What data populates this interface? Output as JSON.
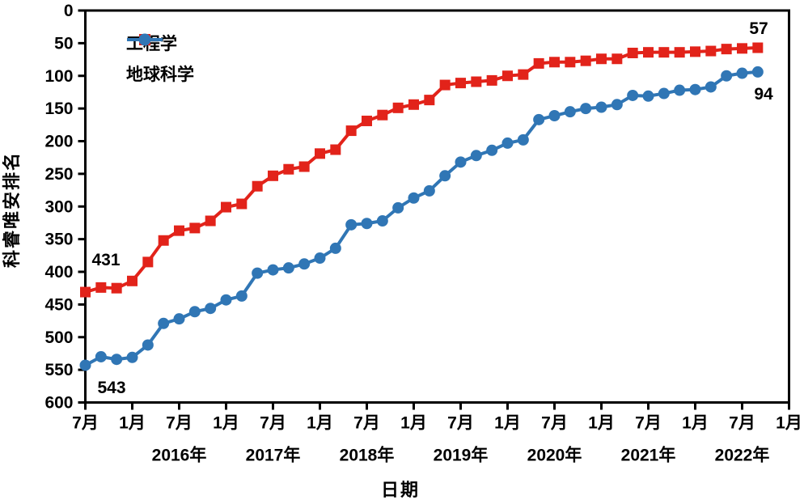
{
  "chart_data": {
    "type": "line",
    "title": "",
    "ylabel": "科睿唯安排名",
    "xlabel": "日期",
    "y_axis": {
      "min": 0,
      "max": 600,
      "step": 50,
      "inverted_ranking_axis": true,
      "tick_labels": [
        "0",
        "50",
        "100",
        "150",
        "200",
        "250",
        "300",
        "350",
        "400",
        "450",
        "500",
        "550",
        "600"
      ]
    },
    "x_axis": {
      "tick_labels": [
        "7月",
        "1月",
        "7月",
        "1月",
        "7月",
        "1月",
        "7月",
        "1月",
        "7月",
        "1月",
        "7月",
        "1月",
        "7月",
        "1月",
        "7月",
        "1月"
      ],
      "year_labels": [
        "2016年",
        "2017年",
        "2018年",
        "2019年",
        "2020年",
        "2021年",
        "2022年"
      ],
      "points_per_tick_interval": 3
    },
    "x_dates": [
      "2015-07",
      "2015-09",
      "2015-11",
      "2016-01",
      "2016-03",
      "2016-05",
      "2016-07",
      "2016-09",
      "2016-11",
      "2017-01",
      "2017-03",
      "2017-05",
      "2017-07",
      "2017-09",
      "2017-11",
      "2018-01",
      "2018-03",
      "2018-05",
      "2018-07",
      "2018-09",
      "2018-11",
      "2019-01",
      "2019-03",
      "2019-05",
      "2019-07",
      "2019-09",
      "2019-11",
      "2020-01",
      "2020-03",
      "2020-05",
      "2020-07",
      "2020-09",
      "2020-11",
      "2021-01",
      "2021-03",
      "2021-05",
      "2021-07",
      "2021-09",
      "2021-11",
      "2022-01",
      "2022-03",
      "2022-05",
      "2022-07",
      "2022-09"
    ],
    "series": [
      {
        "name": "工程学",
        "color": "#e2231a",
        "marker": "square",
        "values": [
          431,
          424,
          425,
          414,
          385,
          352,
          337,
          333,
          322,
          301,
          296,
          269,
          253,
          243,
          239,
          219,
          213,
          184,
          169,
          160,
          149,
          144,
          137,
          114,
          111,
          109,
          107,
          100,
          98,
          81,
          79,
          79,
          77,
          74,
          74,
          65,
          64,
          64,
          64,
          63,
          62,
          59,
          58,
          57
        ]
      },
      {
        "name": "地球科学",
        "color": "#3076b5",
        "marker": "circle",
        "values": [
          543,
          530,
          534,
          531,
          512,
          479,
          472,
          461,
          456,
          443,
          437,
          402,
          397,
          394,
          388,
          379,
          364,
          328,
          326,
          322,
          302,
          287,
          276,
          253,
          232,
          222,
          214,
          203,
          198,
          167,
          161,
          155,
          150,
          148,
          144,
          130,
          131,
          127,
          122,
          121,
          117,
          100,
          96,
          94
        ]
      }
    ],
    "annotations": [
      {
        "text": "431",
        "series": "工程学",
        "position": "first"
      },
      {
        "text": "57",
        "series": "工程学",
        "position": "last"
      },
      {
        "text": "543",
        "series": "地球科学",
        "position": "first"
      },
      {
        "text": "94",
        "series": "地球科学",
        "position": "last"
      }
    ],
    "legend_position": "top-left-inside",
    "grid": false,
    "axis_color": "#000000",
    "background_color": "#ffffff"
  },
  "legend": {
    "items": [
      {
        "label": "工程学"
      },
      {
        "label": "地球科学"
      }
    ]
  }
}
